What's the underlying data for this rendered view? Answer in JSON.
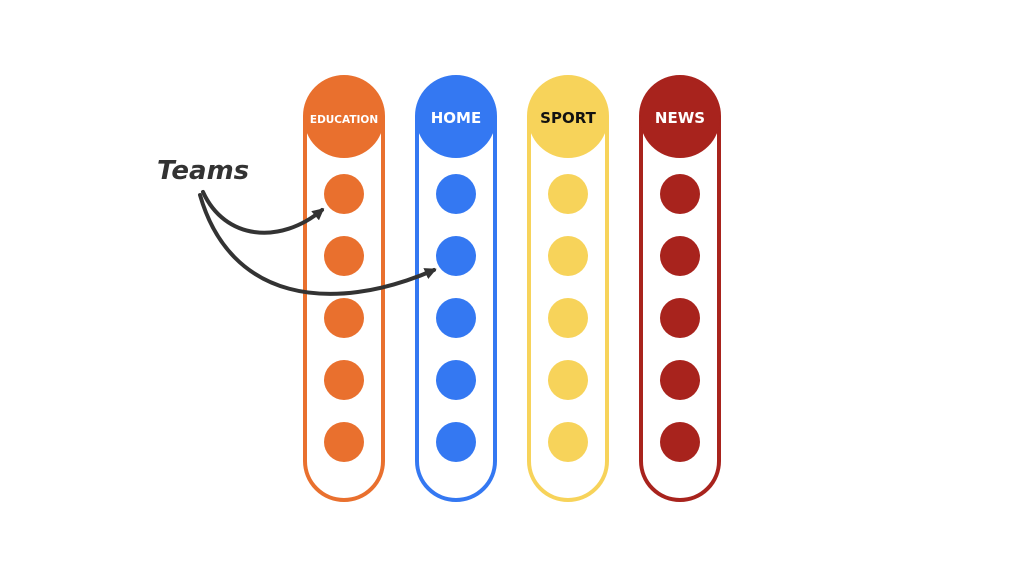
{
  "columns": [
    {
      "label": "EDUCATION",
      "color": "#e9702e",
      "text_color": "#ffffff",
      "team_count": 5
    },
    {
      "label": "HOME",
      "color": "#3478f2",
      "text_color": "#ffffff",
      "team_count": 5
    },
    {
      "label": "SPORT",
      "color": "#f7d35a",
      "text_color": "#111111",
      "team_count": 5
    },
    {
      "label": "NEWS",
      "color": "#a8231d",
      "text_color": "#ffffff",
      "team_count": 5
    }
  ],
  "annotation": {
    "label": "Teams",
    "color": "#333333"
  }
}
